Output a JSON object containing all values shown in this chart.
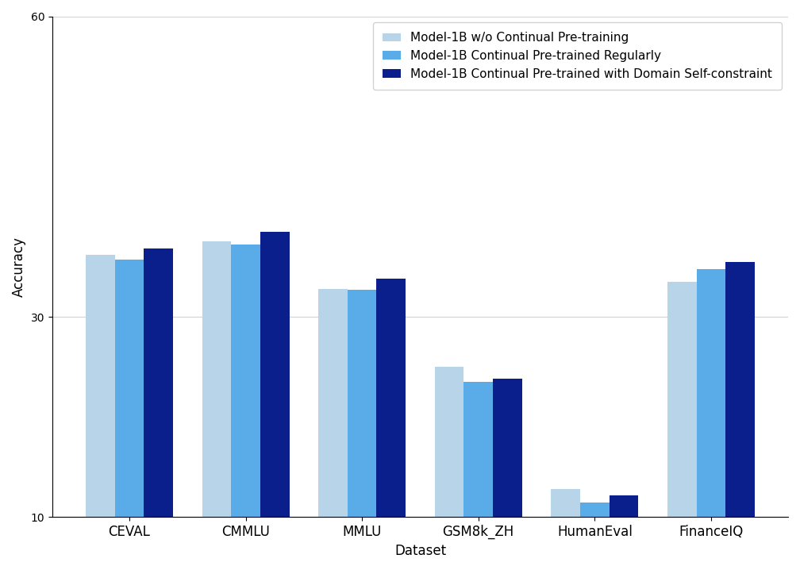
{
  "categories": [
    "CEVAL",
    "CMMLU",
    "MMLU",
    "GSM8k_ZH",
    "HumanEval",
    "FinanceIQ"
  ],
  "series": [
    {
      "label": "Model-1B w/o Continual Pre-training",
      "color": "#b8d4e8",
      "values": [
        36.2,
        37.5,
        32.8,
        25.0,
        12.8,
        33.5
      ]
    },
    {
      "label": "Model-1B Continual Pre-trained Regularly",
      "color": "#5aace8",
      "values": [
        35.7,
        37.2,
        32.7,
        23.5,
        11.5,
        34.8
      ]
    },
    {
      "label": "Model-1B Continual Pre-trained with Domain Self-constraint",
      "color": "#0a1f8c",
      "values": [
        36.8,
        38.5,
        33.8,
        23.8,
        12.2,
        35.5
      ]
    }
  ],
  "xlabel": "Dataset",
  "ylabel": "Accuracy",
  "ylim": [
    10,
    60
  ],
  "yticks": [
    10,
    30,
    60
  ],
  "bar_width": 0.25,
  "figsize": [
    10.08,
    7.18
  ],
  "dpi": 100,
  "background_color": "#ffffff",
  "legend_loc": "upper right",
  "font_size": 12
}
